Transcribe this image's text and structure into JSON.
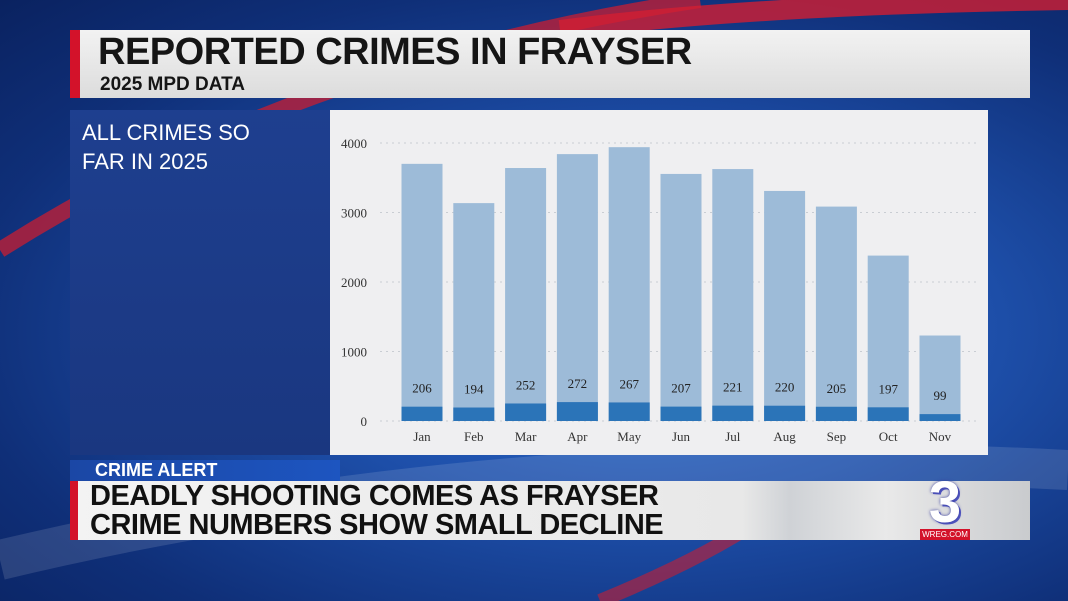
{
  "header": {
    "title": "REPORTED CRIMES IN FRAYSER",
    "subtitle": "2025 MPD DATA"
  },
  "left_panel": {
    "label": "ALL CRIMES SO FAR IN 2025"
  },
  "lower_third": {
    "tag": "CRIME ALERT",
    "line1": "DEADLY SHOOTING COMES AS FRAYSER",
    "line2": "CRIME NUMBERS SHOW SMALL DECLINE"
  },
  "logo": {
    "number": "3",
    "site": "WREG.COM"
  },
  "colors": {
    "accent_red": "#d3122a",
    "bar_total": "#9dbbd8",
    "bar_subset": "#2b74b8"
  },
  "chart_data": {
    "type": "bar",
    "stacked_overlay": true,
    "categories": [
      "Jan",
      "Feb",
      "Mar",
      "Apr",
      "May",
      "Jun",
      "Jul",
      "Aug",
      "Sep",
      "Oct",
      "Nov"
    ],
    "series": [
      {
        "values": [
          3700,
          3135,
          3640,
          3840,
          3940,
          3555,
          3625,
          3310,
          3085,
          2380,
          1230
        ]
      },
      {
        "values": [
          206,
          194,
          252,
          272,
          267,
          207,
          221,
          220,
          205,
          197,
          99
        ],
        "data_labels": true
      }
    ],
    "yticks": [
      0,
      1000,
      2000,
      3000,
      4000
    ],
    "ylim": [
      0,
      4000
    ],
    "grid": "horizontal dotted",
    "title": "",
    "xlabel": "",
    "ylabel": ""
  }
}
